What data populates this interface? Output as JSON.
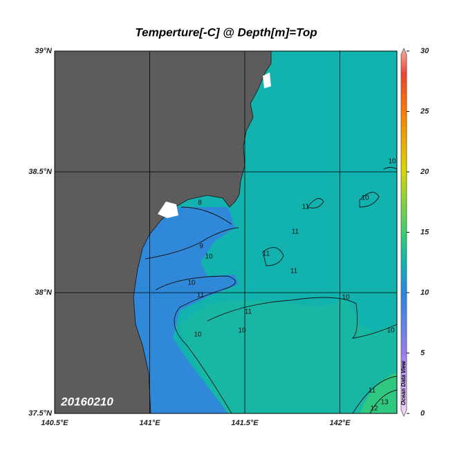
{
  "map": {
    "title": "Temperture[-C] @ Depth[m]=Top",
    "date_label": "20160210",
    "lonlim": [
      140.5,
      142.3
    ],
    "latlim": [
      37.5,
      39
    ],
    "lon_ticks": [
      {
        "value": 140.5,
        "label": "140.5°E"
      },
      {
        "value": 141,
        "label": "141°E"
      },
      {
        "value": 141.5,
        "label": "141.5°E"
      },
      {
        "value": 142,
        "label": "142°E"
      }
    ],
    "lat_ticks": [
      {
        "value": 37.5,
        "label": "37.5°N"
      },
      {
        "value": 38,
        "label": "38°N"
      },
      {
        "value": 38.5,
        "label": "38.5°N"
      },
      {
        "value": 39,
        "label": "39°N"
      }
    ],
    "colorbar": {
      "lim": [
        0,
        30
      ],
      "ticks": [
        0,
        5,
        10,
        15,
        20,
        25,
        30
      ],
      "credit": "Ocean Data View"
    },
    "contour_labels": [
      "8",
      "9",
      "10",
      "10",
      "11",
      "11",
      "11",
      "11",
      "11",
      "10",
      "10",
      "10",
      "10",
      "11",
      "10",
      "11",
      "12",
      "13",
      "10"
    ]
  }
}
